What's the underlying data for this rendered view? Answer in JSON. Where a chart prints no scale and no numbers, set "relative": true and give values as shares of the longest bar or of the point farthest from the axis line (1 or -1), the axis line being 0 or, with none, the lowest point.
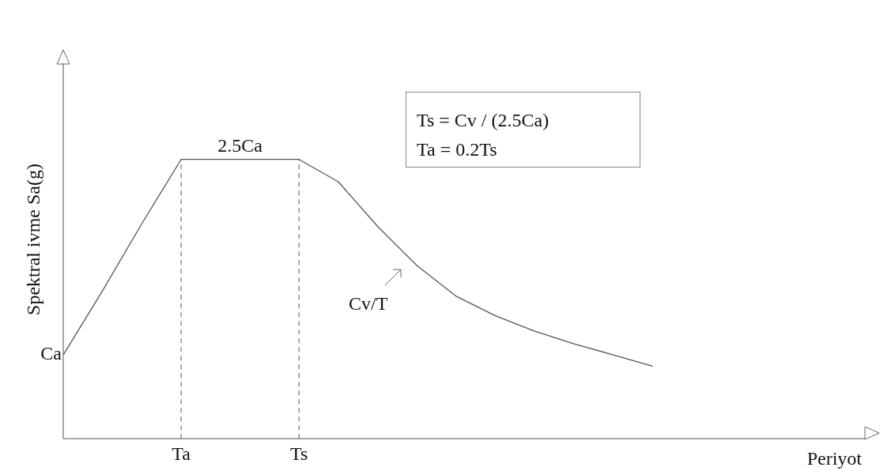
{
  "chart_data": {
    "type": "line",
    "relative": true,
    "xlabel": "Periyot",
    "ylabel": "Spektral ivme Sa(g)",
    "categories": [
      null,
      null,
      null,
      "Ta",
      null,
      null,
      "Ts",
      null,
      null,
      null,
      null,
      null,
      null,
      null,
      null,
      null,
      null,
      null,
      null,
      null,
      null
    ],
    "series": [
      {
        "color": "#555555",
        "values": [
          0.3,
          0.53,
          0.77,
          1,
          1,
          1,
          1,
          0.92,
          0.76,
          0.62,
          0.51,
          0.44,
          0.385,
          0.34,
          0.3,
          0.26,
          null,
          null,
          null,
          null,
          null
        ]
      }
    ],
    "ref_lines": [
      {
        "axis": "x",
        "value": "Ta",
        "line_style": "dashed",
        "color": "#555555"
      },
      {
        "axis": "x",
        "value": "Ts",
        "line_style": "dashed",
        "color": "#555555"
      }
    ],
    "annotations": [
      {
        "text": "2.5Ca",
        "y": 1
      },
      "Cv/T",
      "Ts = Cv / (2.5Ca)",
      "Ta = 0.2Ts",
      "Ca"
    ],
    "legend": false,
    "grid": false,
    "marker": "none",
    "line_style": "solid"
  }
}
